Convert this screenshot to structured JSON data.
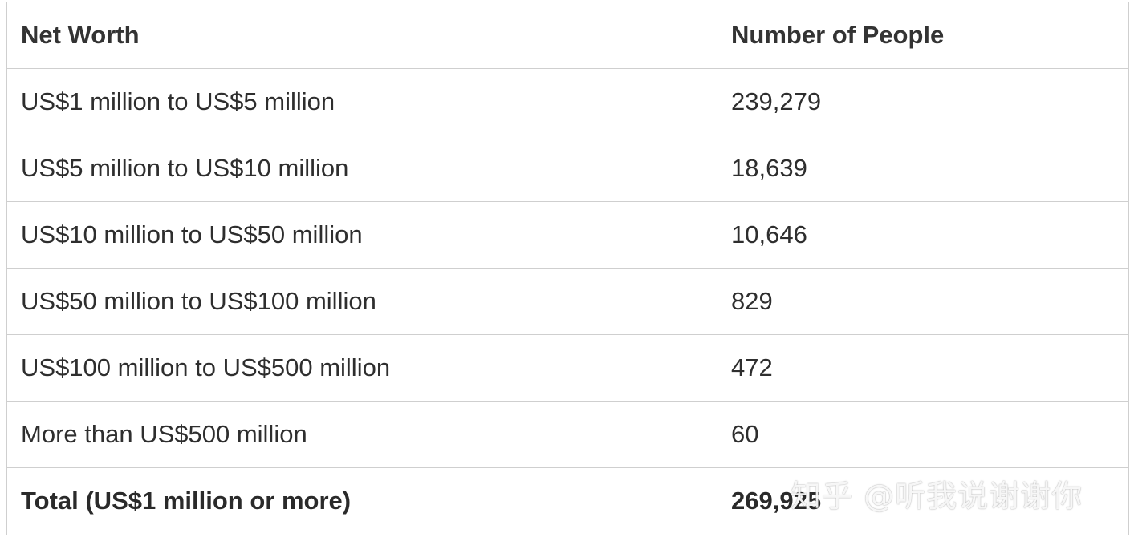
{
  "table": {
    "headers": [
      "Net Worth",
      "Number of People"
    ],
    "rows": [
      [
        "US$1 million to US$5 million",
        "239,279"
      ],
      [
        "US$5 million to US$10 million",
        "18,639"
      ],
      [
        "US$10 million to US$50 million",
        "10,646"
      ],
      [
        "US$50 million to US$100 million",
        "829"
      ],
      [
        "US$100 million to US$500 million",
        "472"
      ],
      [
        "More than US$500 million",
        "60"
      ]
    ],
    "total": [
      "Total (US$1 million or more)",
      "269,925"
    ]
  },
  "watermark": "知乎 @听我说谢谢你"
}
